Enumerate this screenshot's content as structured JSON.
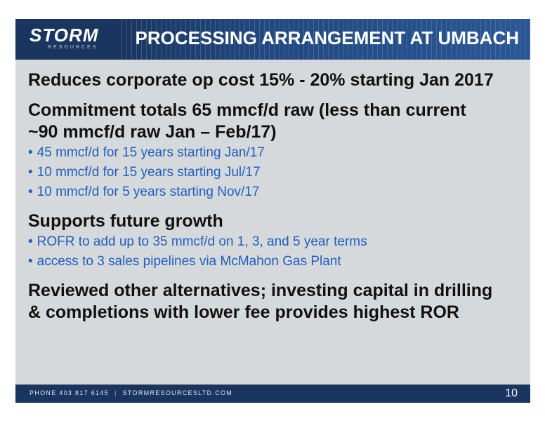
{
  "header": {
    "logo_text": "STORM",
    "logo_sub": "RESOURCES",
    "title": "PROCESSING ARRANGEMENT AT UMBACH"
  },
  "content": {
    "point1": "Reduces corporate op cost 15% - 20% starting Jan 2017",
    "point2_line1": "Commitment totals 65 mmcf/d raw (less than current",
    "point2_line2": "~90 mmcf/d raw Jan – Feb/17)",
    "point2_bullets": [
      "45 mmcf/d for 15 years starting Jan/17",
      "10 mmcf/d for 15 years starting Jul/17",
      "10 mmcf/d for 5 years starting Nov/17"
    ],
    "point3": "Supports future growth",
    "point3_bullets": [
      "ROFR to add up to 35 mmcf/d on 1, 3, and 5 year terms",
      "access to 3 sales pipelines via McMahon Gas Plant"
    ],
    "point4_line1": "Reviewed other alternatives; investing capital in drilling",
    "point4_line2": "& completions with lower fee provides highest ROR"
  },
  "footer": {
    "phone": "PHONE 403 817 6145",
    "separator": "|",
    "website": "STORMRESOURCESLTD.COM",
    "page_number": "10"
  },
  "colors": {
    "header_bg": "#1a355f",
    "slide_bg": "#d6d9db",
    "bullet_text": "#1f5fbf"
  }
}
